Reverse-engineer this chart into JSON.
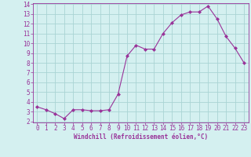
{
  "x": [
    0,
    1,
    2,
    3,
    4,
    5,
    6,
    7,
    8,
    9,
    10,
    11,
    12,
    13,
    14,
    15,
    16,
    17,
    18,
    19,
    20,
    21,
    22,
    23
  ],
  "y": [
    3.5,
    3.2,
    2.8,
    2.3,
    3.2,
    3.2,
    3.1,
    3.1,
    3.2,
    4.8,
    8.7,
    9.8,
    9.4,
    9.4,
    11.0,
    12.1,
    12.9,
    13.2,
    13.2,
    13.8,
    12.5,
    10.7,
    9.5,
    8.0
  ],
  "line_color": "#993399",
  "marker": "D",
  "marker_size": 2,
  "bg_color": "#d4f0f0",
  "grid_color": "#aad4d4",
  "xlabel": "Windchill (Refroidissement éolien,°C)",
  "xlabel_color": "#993399",
  "tick_color": "#993399",
  "ylim": [
    2,
    14
  ],
  "xlim": [
    -0.5,
    23.5
  ],
  "yticks": [
    2,
    3,
    4,
    5,
    6,
    7,
    8,
    9,
    10,
    11,
    12,
    13,
    14
  ],
  "xticks": [
    0,
    1,
    2,
    3,
    4,
    5,
    6,
    7,
    8,
    9,
    10,
    11,
    12,
    13,
    14,
    15,
    16,
    17,
    18,
    19,
    20,
    21,
    22,
    23
  ],
  "tick_fontsize": 5.5,
  "xlabel_fontsize": 5.5
}
